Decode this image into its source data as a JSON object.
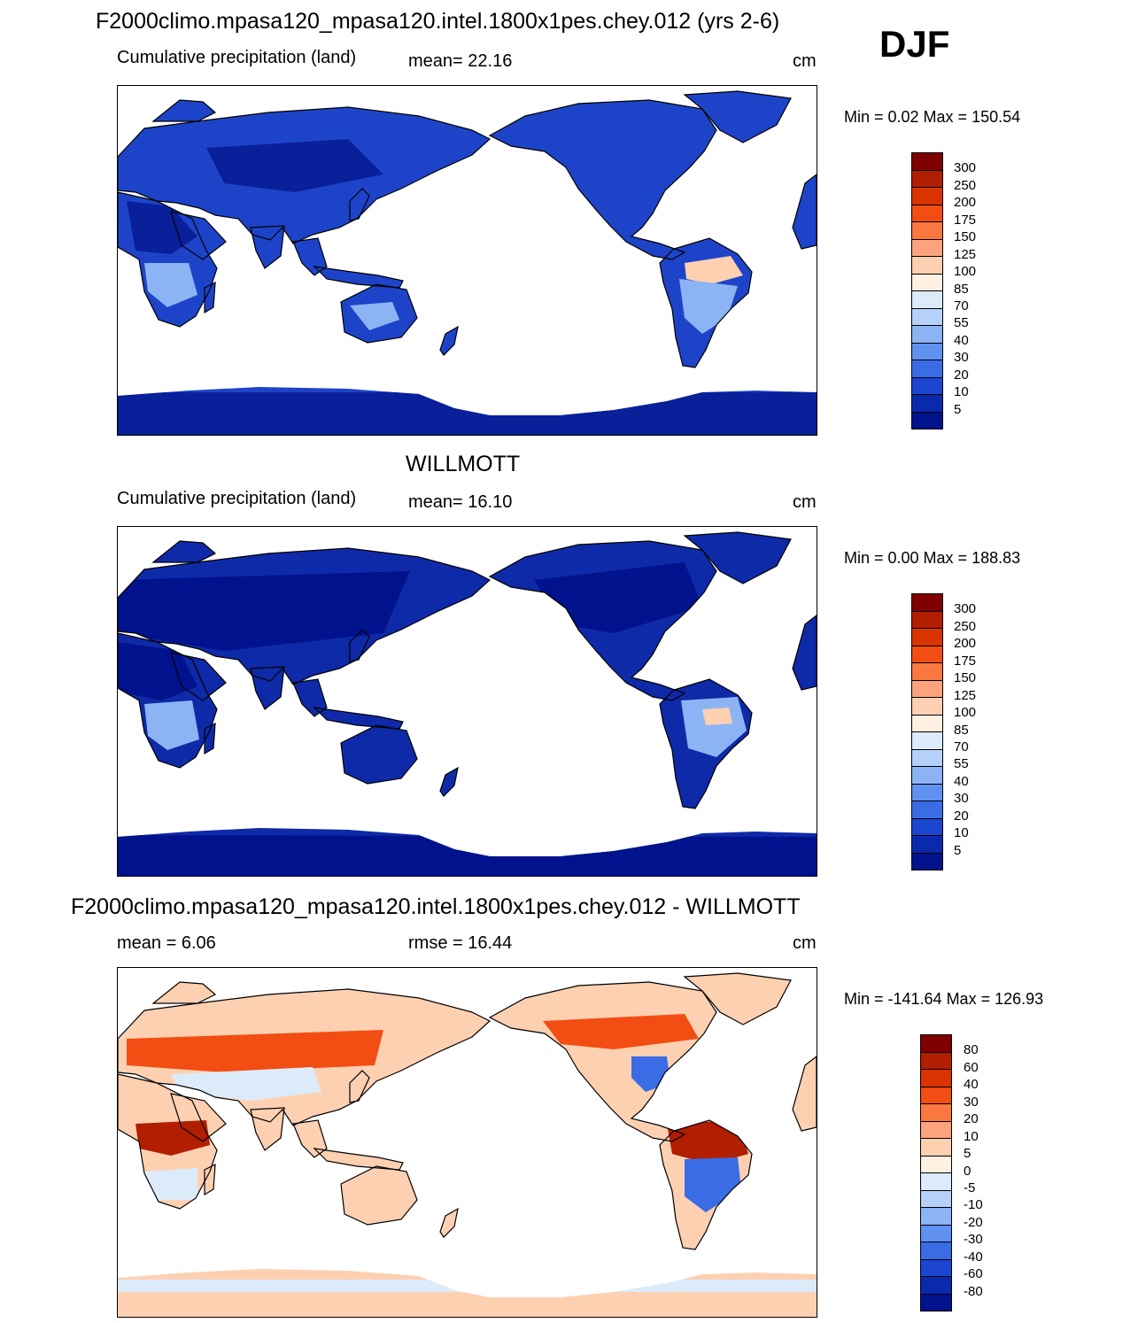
{
  "season": "DJF",
  "panels": [
    {
      "title": "F2000climo.mpasa120_mpasa120.intel.1800x1pes.chey.012 (yrs 2-6)",
      "variable": "Cumulative precipitation (land)",
      "stat1": "mean=  22.16",
      "stat2": "",
      "units": "cm",
      "minmax": "Min =    0.02 Max = 150.54",
      "palette": "model"
    },
    {
      "title": "WILLMOTT",
      "variable": "Cumulative precipitation (land)",
      "stat1": "mean=  16.10",
      "stat2": "",
      "units": "cm",
      "minmax": "Min =    0.00 Max = 188.83",
      "palette": "obs"
    },
    {
      "title": "F2000climo.mpasa120_mpasa120.intel.1800x1pes.chey.012 - WILLMOTT",
      "variable": "mean =    6.06",
      "stat1": "rmse =  16.44",
      "stat2": "",
      "units": "cm",
      "minmax": "Min = -141.64 Max = 126.93",
      "palette": "diff"
    }
  ],
  "colorbars": {
    "precip": {
      "labels": [
        "300",
        "250",
        "200",
        "175",
        "150",
        "125",
        "100",
        "85",
        "70",
        "55",
        "40",
        "30",
        "20",
        "10",
        "5"
      ],
      "colors": [
        "#7f0000",
        "#b21e00",
        "#d93300",
        "#f24d12",
        "#fa7840",
        "#fca37e",
        "#fdd0b2",
        "#fff0e1",
        "#dcebfa",
        "#b5d1fa",
        "#8cb4f5",
        "#5f91f0",
        "#3a6ce6",
        "#1c45d0",
        "#0a2aae",
        "#00138c"
      ]
    },
    "diff": {
      "labels": [
        "80",
        "60",
        "40",
        "30",
        "20",
        "10",
        "5",
        "0",
        "-5",
        "-10",
        "-20",
        "-30",
        "-40",
        "-60",
        "-80"
      ],
      "colors": [
        "#7f0000",
        "#b21e00",
        "#d93300",
        "#f24d12",
        "#fa7840",
        "#fca37e",
        "#fdd0b2",
        "#fff0e1",
        "#dcebfa",
        "#b5d1fa",
        "#8cb4f5",
        "#5f91f0",
        "#3a6ce6",
        "#1c45d0",
        "#0a2aae",
        "#00138c"
      ]
    }
  },
  "map_colors": {
    "model": {
      "base": "#1d44c8",
      "dark": "#0a1f9a",
      "light": "#8cb4f5",
      "warm": "#fdd0b2",
      "ocean": "#ffffff",
      "coast": "#000000"
    },
    "obs": {
      "base": "#0f2aa8",
      "dark": "#00138c",
      "light": "#8cb4f5",
      "warm": "#fdd0b2",
      "ocean": "#ffffff",
      "coast": "#000000"
    },
    "diff": {
      "base": "#fdd0b2",
      "dark": "#f24d12",
      "light": "#dcebfa",
      "warm": "#b21e00",
      "cool": "#3a6ce6",
      "ocean": "#ffffff",
      "coast": "#000000"
    }
  }
}
